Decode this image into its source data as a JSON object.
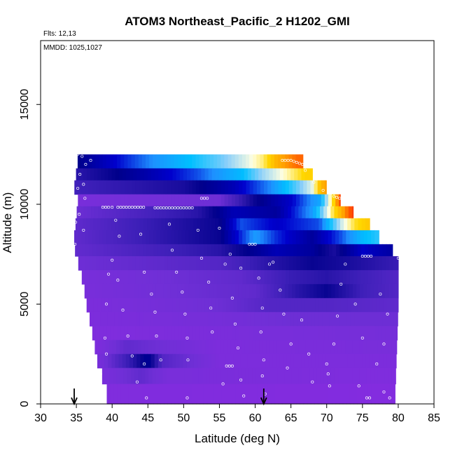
{
  "chart_data": {
    "type": "heatmap",
    "title": "ATOM3 Northeast_Pacific_2 H1202_GMI",
    "annotations": [
      "Flts: 12,13",
      "MMDD: 1025,1027"
    ],
    "xlabel": "Latitude (deg N)",
    "ylabel": "Altitude (m)",
    "xlim": [
      30,
      85
    ],
    "ylim": [
      0,
      18200
    ],
    "x_ticks": [
      30,
      35,
      40,
      45,
      50,
      55,
      60,
      65,
      70,
      75,
      80,
      85
    ],
    "y_ticks": [
      0,
      5000,
      10000,
      15000
    ],
    "grid": false,
    "arrow_markers_lat": [
      34.7,
      61.2
    ],
    "field_boundary": {
      "left": [
        [
          35.3,
          12500
        ],
        [
          35.3,
          10500
        ],
        [
          34.6,
          10500
        ],
        [
          34.6,
          8000
        ],
        [
          36.0,
          6000
        ],
        [
          36.4,
          5000
        ],
        [
          37.0,
          4000
        ],
        [
          38.0,
          2000
        ],
        [
          39.0,
          1000
        ],
        [
          39.5,
          0
        ]
      ],
      "right": [
        [
          65.9,
          12500
        ],
        [
          67.0,
          12000
        ],
        [
          68.0,
          11500
        ],
        [
          69.5,
          11000
        ],
        [
          71.0,
          10500
        ],
        [
          72.5,
          10000
        ],
        [
          74.0,
          9500
        ],
        [
          76.0,
          9000
        ],
        [
          78.0,
          8000
        ],
        [
          80.0,
          7500
        ],
        [
          80.0,
          5000
        ],
        [
          79.5,
          0
        ]
      ]
    },
    "color_scale": [
      "#8a2be2",
      "#6f2fd6",
      "#3d1fb8",
      "#00008b",
      "#0000cd",
      "#1e90ff",
      "#00bfff",
      "#87cefa",
      "#ffffe0",
      "#ffd700",
      "#ffa500",
      "#ff4500",
      "#cc0000",
      "#8b0000"
    ],
    "bands": [
      {
        "alt": [
          11800,
          12500
        ],
        "stops": [
          [
            35.3,
            0.23
          ],
          [
            40,
            0.3
          ],
          [
            48,
            0.42
          ],
          [
            55,
            0.52
          ],
          [
            59,
            0.6
          ],
          [
            61,
            0.65
          ],
          [
            63,
            0.75
          ],
          [
            66,
            0.82
          ]
        ]
      },
      {
        "alt": [
          11200,
          11800
        ],
        "stops": [
          [
            35.3,
            0.18
          ],
          [
            45,
            0.27
          ],
          [
            52,
            0.35
          ],
          [
            58,
            0.45
          ],
          [
            61,
            0.55
          ],
          [
            64,
            0.62
          ],
          [
            67,
            0.7
          ]
        ]
      },
      {
        "alt": [
          10500,
          11200
        ],
        "stops": [
          [
            35.3,
            0.15
          ],
          [
            50,
            0.2
          ],
          [
            57,
            0.28
          ],
          [
            62,
            0.38
          ],
          [
            66,
            0.52
          ],
          [
            68,
            0.6
          ],
          [
            69,
            0.72
          ],
          [
            71.5,
            0.88
          ]
        ]
      },
      {
        "alt": [
          9900,
          10500
        ],
        "stops": [
          [
            34.6,
            0.05
          ],
          [
            55,
            0.08
          ],
          [
            60,
            0.22
          ],
          [
            65,
            0.3
          ],
          [
            69,
            0.42
          ],
          [
            71,
            0.7
          ],
          [
            72,
            0.88
          ],
          [
            73,
            1.0
          ]
        ]
      },
      {
        "alt": [
          9300,
          9900
        ],
        "stops": [
          [
            34.6,
            0.08
          ],
          [
            52,
            0.18
          ],
          [
            57,
            0.28
          ],
          [
            63,
            0.25
          ],
          [
            68,
            0.4
          ],
          [
            71,
            0.68
          ],
          [
            73,
            0.82
          ],
          [
            74.5,
            0.9
          ]
        ]
      },
      {
        "alt": [
          8700,
          9300
        ],
        "stops": [
          [
            34.6,
            0.1
          ],
          [
            55,
            0.22
          ],
          [
            58,
            0.35
          ],
          [
            63,
            0.3
          ],
          [
            69,
            0.35
          ],
          [
            72,
            0.58
          ],
          [
            74,
            0.68
          ],
          [
            76,
            0.72
          ]
        ]
      },
      {
        "alt": [
          8000,
          8700
        ],
        "stops": [
          [
            34.6,
            0.1
          ],
          [
            55,
            0.22
          ],
          [
            60,
            0.4
          ],
          [
            63,
            0.33
          ],
          [
            68,
            0.25
          ],
          [
            72,
            0.35
          ],
          [
            75,
            0.45
          ],
          [
            78,
            0.5
          ]
        ]
      },
      {
        "alt": [
          7400,
          8000
        ],
        "stops": [
          [
            35.8,
            0.1
          ],
          [
            55,
            0.18
          ],
          [
            58,
            0.22
          ],
          [
            63,
            0.28
          ],
          [
            68,
            0.25
          ],
          [
            71,
            0.2
          ],
          [
            75,
            0.3
          ],
          [
            80,
            0.25
          ]
        ]
      },
      {
        "alt": [
          6700,
          7400
        ],
        "stops": [
          [
            35.8,
            0.08
          ],
          [
            55,
            0.12
          ],
          [
            62,
            0.18
          ],
          [
            68,
            0.22
          ],
          [
            73,
            0.2
          ],
          [
            80,
            0.16
          ]
        ]
      },
      {
        "alt": [
          6000,
          6700
        ],
        "stops": [
          [
            35.8,
            0.05
          ],
          [
            58,
            0.1
          ],
          [
            65,
            0.16
          ],
          [
            70,
            0.18
          ],
          [
            80,
            0.12
          ]
        ]
      },
      {
        "alt": [
          5300,
          6000
        ],
        "stops": [
          [
            36.2,
            0.05
          ],
          [
            60,
            0.1
          ],
          [
            66,
            0.18
          ],
          [
            70,
            0.22
          ],
          [
            75,
            0.15
          ],
          [
            80,
            0.12
          ]
        ]
      },
      {
        "alt": [
          4600,
          5300
        ],
        "stops": [
          [
            36.4,
            0.04
          ],
          [
            55,
            0.08
          ],
          [
            62,
            0.12
          ],
          [
            70,
            0.12
          ],
          [
            80,
            0.1
          ]
        ]
      },
      {
        "alt": [
          3900,
          4600
        ],
        "stops": [
          [
            37.0,
            0.04
          ],
          [
            55,
            0.06
          ],
          [
            65,
            0.08
          ],
          [
            80,
            0.08
          ]
        ]
      },
      {
        "alt": [
          3200,
          3900
        ],
        "stops": [
          [
            37.5,
            0.03
          ],
          [
            60,
            0.05
          ],
          [
            80,
            0.06
          ]
        ]
      },
      {
        "alt": [
          2500,
          3200
        ],
        "stops": [
          [
            38.0,
            0.04
          ],
          [
            42,
            0.1
          ],
          [
            46,
            0.08
          ],
          [
            55,
            0.04
          ],
          [
            80,
            0.05
          ]
        ]
      },
      {
        "alt": [
          1800,
          2500
        ],
        "stops": [
          [
            38.5,
            0.06
          ],
          [
            43,
            0.18
          ],
          [
            45,
            0.25
          ],
          [
            47,
            0.12
          ],
          [
            55,
            0.04
          ],
          [
            80,
            0.04
          ]
        ]
      },
      {
        "alt": [
          1000,
          1800
        ],
        "stops": [
          [
            39.0,
            0.05
          ],
          [
            44,
            0.1
          ],
          [
            48,
            0.05
          ],
          [
            80,
            0.03
          ]
        ]
      },
      {
        "alt": [
          0,
          1000
        ],
        "stops": [
          [
            39.5,
            0.03
          ],
          [
            80,
            0.02
          ]
        ]
      }
    ],
    "flight_track_points": [
      [
        35.2,
        12500
      ],
      [
        35.8,
        12400
      ],
      [
        36.3,
        12000
      ],
      [
        37.0,
        12200
      ],
      [
        35.5,
        11500
      ],
      [
        36.0,
        11000
      ],
      [
        35.2,
        10800
      ],
      [
        36.2,
        10300
      ],
      [
        34.8,
        10000
      ],
      [
        35.4,
        9500
      ],
      [
        34.9,
        9100
      ],
      [
        36.0,
        8700
      ],
      [
        34.8,
        8000
      ],
      [
        38.7,
        9850
      ],
      [
        39.1,
        9850
      ],
      [
        39.5,
        9850
      ],
      [
        40.0,
        9850
      ],
      [
        40.8,
        9850
      ],
      [
        41.2,
        9850
      ],
      [
        41.6,
        9850
      ],
      [
        42.0,
        9850
      ],
      [
        42.4,
        9850
      ],
      [
        42.8,
        9850
      ],
      [
        43.2,
        9850
      ],
      [
        43.6,
        9850
      ],
      [
        44.0,
        9850
      ],
      [
        44.4,
        9850
      ],
      [
        46.0,
        9820
      ],
      [
        46.4,
        9820
      ],
      [
        46.8,
        9820
      ],
      [
        47.2,
        9820
      ],
      [
        47.6,
        9820
      ],
      [
        48.0,
        9820
      ],
      [
        48.4,
        9820
      ],
      [
        48.8,
        9820
      ],
      [
        49.2,
        9820
      ],
      [
        49.6,
        9820
      ],
      [
        50.0,
        9820
      ],
      [
        50.4,
        9820
      ],
      [
        50.8,
        9820
      ],
      [
        51.2,
        9820
      ],
      [
        52.5,
        10300
      ],
      [
        52.9,
        10300
      ],
      [
        53.3,
        10300
      ],
      [
        59.2,
        8000
      ],
      [
        59.6,
        8000
      ],
      [
        60.0,
        8000
      ],
      [
        56.5,
        7500
      ],
      [
        58.0,
        6800
      ],
      [
        62.0,
        7000
      ],
      [
        62.5,
        7100
      ],
      [
        63.8,
        12200
      ],
      [
        64.2,
        12200
      ],
      [
        64.6,
        12200
      ],
      [
        65.0,
        12200
      ],
      [
        65.4,
        12150
      ],
      [
        65.8,
        12100
      ],
      [
        66.2,
        12050
      ],
      [
        66.6,
        12000
      ],
      [
        67.0,
        11700
      ],
      [
        68.2,
        11100
      ],
      [
        69.5,
        10700
      ],
      [
        71.0,
        10400
      ],
      [
        71.4,
        10350
      ],
      [
        71.8,
        10300
      ],
      [
        72.2,
        10300
      ],
      [
        75.0,
        7400
      ],
      [
        75.4,
        7400
      ],
      [
        75.8,
        7400
      ],
      [
        76.2,
        7400
      ],
      [
        80.0,
        7300
      ],
      [
        77.5,
        5500
      ],
      [
        78.5,
        4500
      ],
      [
        78.0,
        3000
      ],
      [
        77.0,
        2000
      ],
      [
        39.5,
        6500
      ],
      [
        39.2,
        5000
      ],
      [
        39.0,
        3300
      ],
      [
        38.4,
        1500
      ],
      [
        39.2,
        2500
      ],
      [
        40.5,
        9200
      ],
      [
        41.0,
        8400
      ],
      [
        40.0,
        7200
      ],
      [
        40.8,
        6200
      ],
      [
        41.5,
        4700
      ],
      [
        42.2,
        3400
      ],
      [
        42.8,
        2400
      ],
      [
        43.5,
        1100
      ],
      [
        44.5,
        2000
      ],
      [
        44.8,
        300
      ],
      [
        44.0,
        8500
      ],
      [
        44.5,
        6600
      ],
      [
        45.5,
        5500
      ],
      [
        46.0,
        4600
      ],
      [
        46.2,
        3400
      ],
      [
        46.8,
        2200
      ],
      [
        48.0,
        9000
      ],
      [
        48.4,
        7700
      ],
      [
        49.0,
        6600
      ],
      [
        49.8,
        5600
      ],
      [
        50.2,
        4500
      ],
      [
        50.5,
        3300
      ],
      [
        50.6,
        2200
      ],
      [
        50.5,
        300
      ],
      [
        52.0,
        8700
      ],
      [
        52.5,
        7300
      ],
      [
        53.5,
        6100
      ],
      [
        53.8,
        4800
      ],
      [
        54.0,
        3600
      ],
      [
        56.0,
        1900
      ],
      [
        56.4,
        1900
      ],
      [
        56.8,
        1900
      ],
      [
        55.5,
        1000
      ],
      [
        55.0,
        8800
      ],
      [
        55.8,
        7000
      ],
      [
        56.8,
        5300
      ],
      [
        57.2,
        4000
      ],
      [
        57.6,
        2800
      ],
      [
        58.0,
        1200
      ],
      [
        58.4,
        400
      ],
      [
        60.5,
        6300
      ],
      [
        61.0,
        4800
      ],
      [
        60.8,
        3600
      ],
      [
        61.2,
        2200
      ],
      [
        61.0,
        1400
      ],
      [
        61.4,
        500
      ],
      [
        63.5,
        5700
      ],
      [
        64.0,
        4500
      ],
      [
        65.0,
        3000
      ],
      [
        64.5,
        1800
      ],
      [
        66.5,
        4200
      ],
      [
        67.5,
        2500
      ],
      [
        68.0,
        1100
      ],
      [
        70.0,
        2000
      ],
      [
        70.2,
        1500
      ],
      [
        70.4,
        900
      ],
      [
        71.0,
        3000
      ],
      [
        71.5,
        4400
      ],
      [
        72.0,
        6000
      ],
      [
        72.6,
        7000
      ],
      [
        74.0,
        5000
      ],
      [
        75.0,
        3300
      ],
      [
        74.5,
        900
      ],
      [
        75.6,
        300
      ],
      [
        76.0,
        300
      ],
      [
        78.0,
        600
      ],
      [
        78.8,
        300
      ]
    ]
  }
}
